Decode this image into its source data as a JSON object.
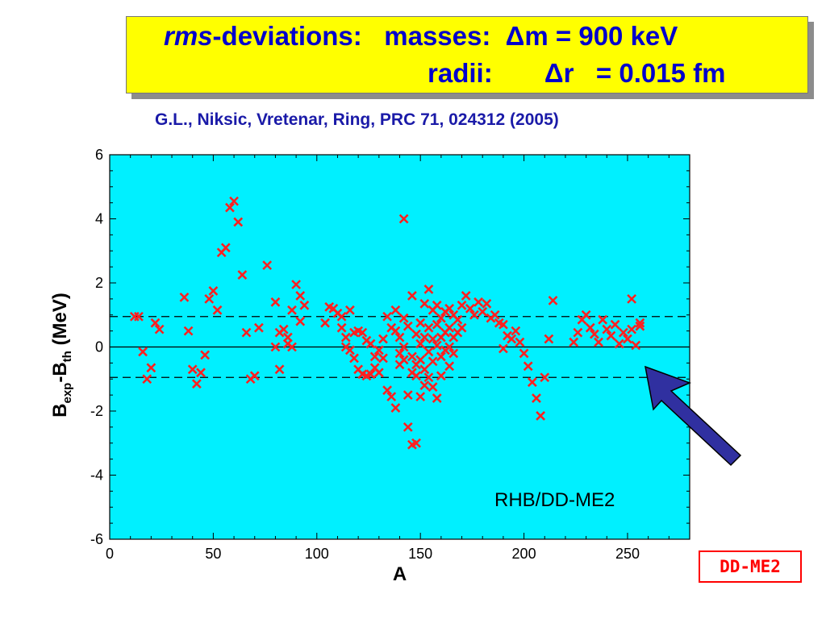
{
  "title": {
    "line1_italic": "rms",
    "line1_rest": "-deviations:   masses:  Δm = 900 keV",
    "line2": "radii:       Δr   = 0.015 fm"
  },
  "citation": "G.L., Niksic, Vretenar, Ring, PRC 71, 024312 (2005)",
  "dd_label": "DD-ME2",
  "colors": {
    "title_bg": "#ffff00",
    "title_text": "#0000cc",
    "plot_bg": "#00f0ff",
    "marker": "#ff2020",
    "arrow": "#3030a0",
    "label_box": "#ff0000"
  },
  "icons": {
    "arrow": "arrow-icon"
  },
  "chart_data": {
    "type": "scatter",
    "xlabel": "A",
    "ylabel": {
      "B": "B",
      "sub1": "exp",
      "dash": "-B",
      "sub2": "th",
      "unit": "  (MeV)"
    },
    "xlim": [
      0,
      280
    ],
    "ylim": [
      -6,
      6
    ],
    "xticks": [
      0,
      50,
      100,
      150,
      200,
      250
    ],
    "yticks": [
      -6,
      -4,
      -2,
      0,
      2,
      4,
      6
    ],
    "reference_lines": [
      0.95,
      -0.95,
      0
    ],
    "annotation": "RHB/DD-ME2",
    "points": [
      [
        12,
        0.95
      ],
      [
        14,
        0.95
      ],
      [
        16,
        -0.15
      ],
      [
        18,
        -1.0
      ],
      [
        20,
        -0.65
      ],
      [
        22,
        0.75
      ],
      [
        24,
        0.55
      ],
      [
        36,
        1.55
      ],
      [
        38,
        0.5
      ],
      [
        40,
        -0.7
      ],
      [
        42,
        -1.15
      ],
      [
        44,
        -0.8
      ],
      [
        46,
        -0.25
      ],
      [
        48,
        1.5
      ],
      [
        50,
        1.75
      ],
      [
        52,
        1.15
      ],
      [
        54,
        2.95
      ],
      [
        56,
        3.1
      ],
      [
        58,
        4.35
      ],
      [
        60,
        4.55
      ],
      [
        62,
        3.9
      ],
      [
        64,
        2.25
      ],
      [
        66,
        0.45
      ],
      [
        68,
        -1.0
      ],
      [
        70,
        -0.9
      ],
      [
        72,
        0.6
      ],
      [
        76,
        2.55
      ],
      [
        80,
        1.4
      ],
      [
        80,
        0.0
      ],
      [
        82,
        -0.7
      ],
      [
        82,
        0.45
      ],
      [
        84,
        0.55
      ],
      [
        86,
        0.3
      ],
      [
        86,
        0.1
      ],
      [
        88,
        1.15
      ],
      [
        88,
        0.0
      ],
      [
        90,
        1.95
      ],
      [
        92,
        0.8
      ],
      [
        92,
        1.6
      ],
      [
        94,
        1.3
      ],
      [
        104,
        0.75
      ],
      [
        106,
        1.25
      ],
      [
        108,
        1.2
      ],
      [
        110,
        1.05
      ],
      [
        112,
        0.95
      ],
      [
        112,
        0.6
      ],
      [
        114,
        0.3
      ],
      [
        114,
        0.0
      ],
      [
        116,
        1.15
      ],
      [
        116,
        -0.1
      ],
      [
        118,
        -0.35
      ],
      [
        118,
        0.45
      ],
      [
        120,
        -0.7
      ],
      [
        120,
        0.5
      ],
      [
        122,
        0.45
      ],
      [
        122,
        -0.85
      ],
      [
        124,
        -0.9
      ],
      [
        124,
        0.2
      ],
      [
        126,
        -0.85
      ],
      [
        126,
        0.1
      ],
      [
        128,
        -0.65
      ],
      [
        128,
        -0.3
      ],
      [
        130,
        -0.8
      ],
      [
        130,
        -0.1
      ],
      [
        132,
        -0.35
      ],
      [
        132,
        0.25
      ],
      [
        134,
        -1.35
      ],
      [
        134,
        0.95
      ],
      [
        136,
        -1.55
      ],
      [
        136,
        0.6
      ],
      [
        138,
        -1.9
      ],
      [
        138,
        0.5
      ],
      [
        138,
        1.15
      ],
      [
        140,
        0.3
      ],
      [
        140,
        -0.2
      ],
      [
        140,
        -0.55
      ],
      [
        142,
        4.0
      ],
      [
        142,
        0.9
      ],
      [
        142,
        0.0
      ],
      [
        142,
        -0.4
      ],
      [
        144,
        -1.5
      ],
      [
        144,
        -2.5
      ],
      [
        144,
        0.65
      ],
      [
        146,
        -3.05
      ],
      [
        146,
        1.6
      ],
      [
        146,
        -0.3
      ],
      [
        146,
        -0.8
      ],
      [
        148,
        -3.0
      ],
      [
        148,
        -0.9
      ],
      [
        148,
        0.4
      ],
      [
        148,
        -0.55
      ],
      [
        150,
        -1.55
      ],
      [
        150,
        0.75
      ],
      [
        150,
        0.1
      ],
      [
        150,
        -0.4
      ],
      [
        152,
        1.35
      ],
      [
        152,
        0.3
      ],
      [
        152,
        -0.7
      ],
      [
        152,
        -1.2
      ],
      [
        154,
        1.8
      ],
      [
        154,
        0.6
      ],
      [
        154,
        -0.15
      ],
      [
        154,
        -0.95
      ],
      [
        156,
        1.15
      ],
      [
        156,
        0.25
      ],
      [
        156,
        -0.45
      ],
      [
        156,
        -1.25
      ],
      [
        158,
        1.3
      ],
      [
        158,
        0.7
      ],
      [
        158,
        -1.6
      ],
      [
        158,
        0.05
      ],
      [
        160,
        0.9
      ],
      [
        160,
        0.3
      ],
      [
        160,
        -0.3
      ],
      [
        160,
        -0.9
      ],
      [
        162,
        1.1
      ],
      [
        162,
        0.45
      ],
      [
        162,
        -0.1
      ],
      [
        164,
        1.2
      ],
      [
        164,
        0.6
      ],
      [
        164,
        0.0
      ],
      [
        164,
        -0.6
      ],
      [
        166,
        1.0
      ],
      [
        166,
        0.3
      ],
      [
        166,
        -0.2
      ],
      [
        168,
        0.85
      ],
      [
        168,
        0.45
      ],
      [
        170,
        1.3
      ],
      [
        170,
        0.6
      ],
      [
        172,
        1.6
      ],
      [
        174,
        1.2
      ],
      [
        176,
        1.0
      ],
      [
        178,
        1.4
      ],
      [
        180,
        1.1
      ],
      [
        182,
        1.35
      ],
      [
        184,
        0.9
      ],
      [
        186,
        1.0
      ],
      [
        188,
        0.75
      ],
      [
        190,
        -0.05
      ],
      [
        190,
        0.7
      ],
      [
        192,
        0.35
      ],
      [
        194,
        0.25
      ],
      [
        196,
        0.5
      ],
      [
        198,
        0.15
      ],
      [
        200,
        -0.2
      ],
      [
        202,
        -0.6
      ],
      [
        204,
        -1.1
      ],
      [
        206,
        -1.6
      ],
      [
        208,
        -2.15
      ],
      [
        210,
        -0.95
      ],
      [
        212,
        0.25
      ],
      [
        214,
        1.45
      ],
      [
        224,
        0.15
      ],
      [
        226,
        0.45
      ],
      [
        228,
        0.85
      ],
      [
        230,
        1.0
      ],
      [
        232,
        0.6
      ],
      [
        234,
        0.4
      ],
      [
        236,
        0.15
      ],
      [
        238,
        0.85
      ],
      [
        240,
        0.55
      ],
      [
        242,
        0.35
      ],
      [
        244,
        0.7
      ],
      [
        246,
        0.1
      ],
      [
        248,
        0.45
      ],
      [
        250,
        0.25
      ],
      [
        252,
        1.5
      ],
      [
        252,
        0.55
      ],
      [
        254,
        0.05
      ],
      [
        256,
        0.75
      ],
      [
        256,
        0.65
      ]
    ]
  }
}
